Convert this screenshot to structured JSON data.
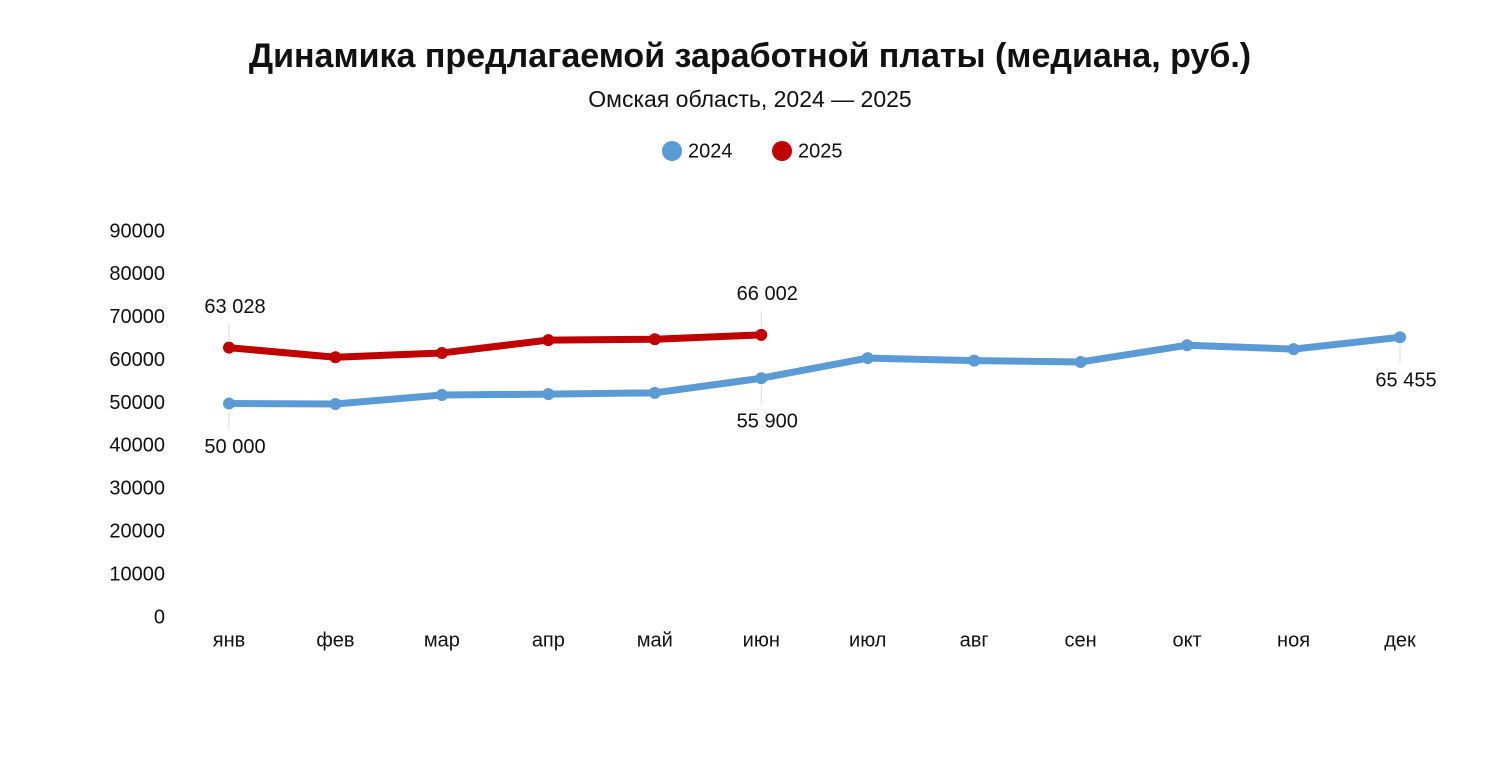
{
  "chart_data": {
    "type": "line",
    "title": "Динамика предлагаемой заработной платы (медиана, руб.)",
    "subtitle": "Омская область, 2024 — 2025",
    "categories": [
      "янв",
      "фев",
      "мар",
      "апр",
      "май",
      "июн",
      "июл",
      "авг",
      "сен",
      "окт",
      "ноя",
      "дек"
    ],
    "series": [
      {
        "name": "2024",
        "color": "#5b9bd5",
        "values": [
          50000,
          49900,
          52000,
          52200,
          52500,
          55900,
          60600,
          60000,
          59700,
          63600,
          62700,
          65455
        ],
        "value_labels": [
          "50 000",
          null,
          null,
          null,
          null,
          "55 900",
          null,
          null,
          null,
          null,
          null,
          "65 455"
        ]
      },
      {
        "name": "2025",
        "color": "#c00000",
        "values": [
          63028,
          60800,
          61800,
          64800,
          65000,
          66002,
          null,
          null,
          null,
          null,
          null,
          null
        ],
        "value_labels": [
          "63 028",
          null,
          null,
          null,
          null,
          "66 002",
          null,
          null,
          null,
          null,
          null,
          null
        ]
      }
    ],
    "ylim": [
      0,
      90000
    ],
    "yticks": [
      0,
      10000,
      20000,
      30000,
      40000,
      50000,
      60000,
      70000,
      80000,
      90000
    ],
    "grid": false,
    "legend": "top"
  }
}
